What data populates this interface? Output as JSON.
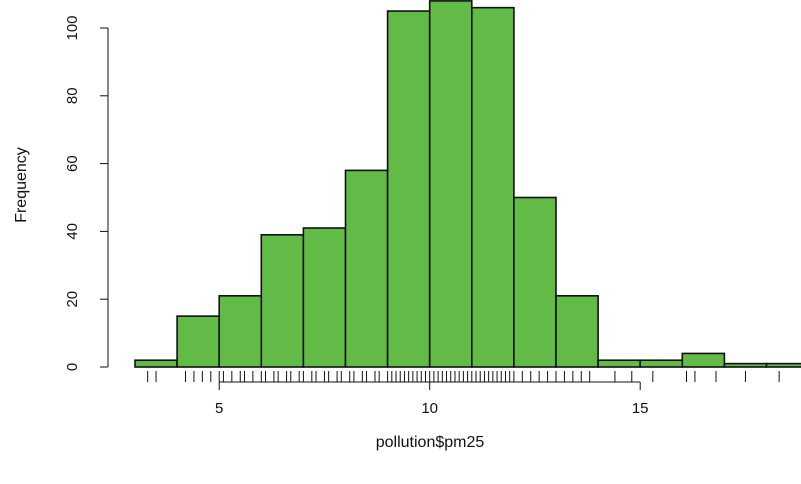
{
  "chart_data": {
    "type": "bar",
    "title": "",
    "xlabel": "pollution$pm25",
    "ylabel": "Frequency",
    "bin_edges": [
      3,
      4,
      5,
      6,
      7,
      8,
      9,
      10,
      11,
      12,
      13,
      14,
      15,
      16,
      17,
      18,
      19
    ],
    "values": [
      2,
      15,
      21,
      39,
      41,
      58,
      105,
      108,
      106,
      50,
      21,
      2,
      2,
      4,
      1,
      1
    ],
    "xlim": [
      3,
      18.6
    ],
    "ylim": [
      0,
      108
    ],
    "x_ticks": [
      "5",
      "10",
      "15"
    ],
    "y_ticks": [
      "0",
      "20",
      "40",
      "60",
      "80",
      "100"
    ],
    "rug": [
      3.3,
      3.5,
      4.2,
      4.4,
      4.6,
      4.8,
      5.0,
      5.1,
      5.3,
      5.5,
      5.6,
      5.8,
      6.0,
      6.1,
      6.3,
      6.4,
      6.6,
      6.7,
      6.9,
      7.0,
      7.2,
      7.3,
      7.5,
      7.6,
      7.8,
      7.9,
      8.1,
      8.2,
      8.4,
      8.5,
      8.7,
      8.8,
      9.0,
      9.1,
      9.2,
      9.3,
      9.4,
      9.5,
      9.6,
      9.7,
      9.8,
      9.9,
      10.0,
      10.1,
      10.2,
      10.3,
      10.4,
      10.5,
      10.6,
      10.7,
      10.8,
      10.9,
      11.0,
      11.1,
      11.2,
      11.3,
      11.4,
      11.5,
      11.6,
      11.7,
      11.8,
      11.9,
      12.0,
      12.2,
      12.4,
      12.6,
      12.8,
      13.0,
      13.2,
      13.4,
      13.6,
      13.8,
      14.4,
      14.8,
      15.3,
      16.1,
      16.3,
      16.8,
      17.5,
      18.3
    ],
    "grid": false,
    "colors": {
      "bar_fill": "#63bb47",
      "bar_border": "#111111",
      "rug": "#111111"
    }
  }
}
